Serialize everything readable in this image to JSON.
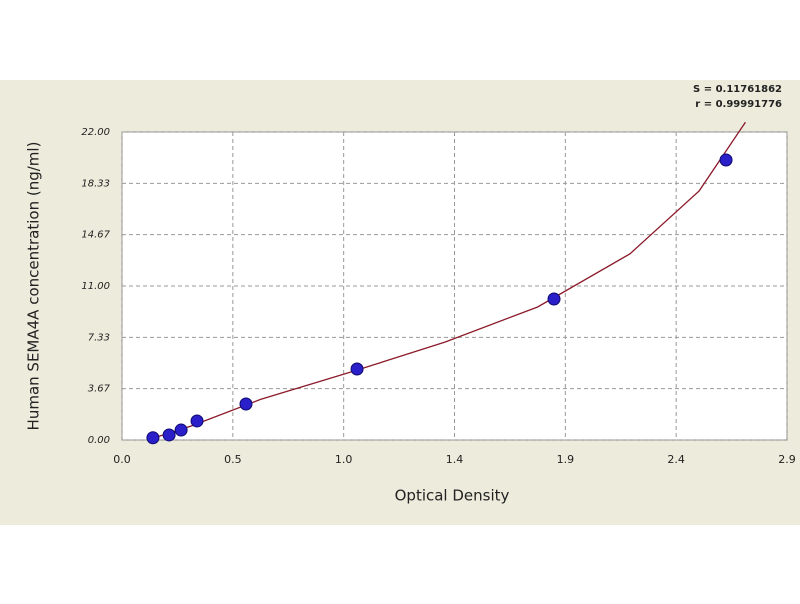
{
  "chart_data": {
    "type": "scatter",
    "x_label": "Optical Density",
    "y_label": "Human SEMA4A concentration (ng/ml)",
    "annotations": [
      "S = 0.11761862",
      "r = 0.99991776"
    ],
    "xlim": [
      0,
      2.88
    ],
    "ylim": [
      0,
      22
    ],
    "xticks": [
      {
        "value": 0,
        "label": "0.0"
      },
      {
        "value": 0.48,
        "label": "0.5"
      },
      {
        "value": 0.96,
        "label": "1.0"
      },
      {
        "value": 1.44,
        "label": "1.4"
      },
      {
        "value": 1.92,
        "label": "1.9"
      },
      {
        "value": 2.4,
        "label": "2.4"
      },
      {
        "value": 2.88,
        "label": "2.9"
      }
    ],
    "yticks": [
      {
        "value": 0,
        "label": "0.00"
      },
      {
        "value": 3.667,
        "label": "3.67"
      },
      {
        "value": 7.333,
        "label": "7.33"
      },
      {
        "value": 11,
        "label": "11.00"
      },
      {
        "value": 14.667,
        "label": "14.67"
      },
      {
        "value": 18.333,
        "label": "18.33"
      },
      {
        "value": 22,
        "label": "22.00"
      }
    ],
    "grid": true,
    "series": [
      {
        "color": "#2a1fc8",
        "x": [
          0.134,
          0.204,
          0.256,
          0.325,
          0.537,
          1.018,
          1.871,
          2.616
        ],
        "values": [
          0.16,
          0.36,
          0.71,
          1.36,
          2.57,
          5.07,
          10.07,
          20.0
        ]
      }
    ],
    "fit": {
      "color": "#8b1a2a",
      "x": [
        0.11,
        0.3,
        0.6,
        1.0,
        1.4,
        1.8,
        2.2,
        2.5,
        2.7
      ],
      "values": [
        0,
        1.0,
        2.9,
        4.9,
        7.0,
        9.5,
        13.3,
        17.8,
        22.7
      ]
    }
  }
}
